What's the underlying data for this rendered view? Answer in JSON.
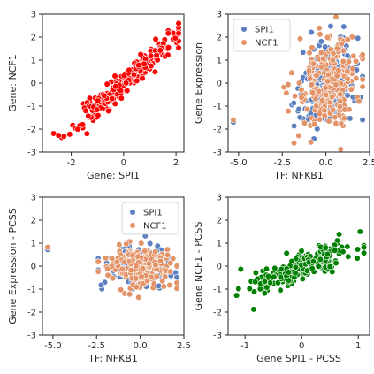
{
  "chart_data": [
    {
      "type": "scatter",
      "xlabel": "Gene: SPI1",
      "ylabel": "Gene: NCF1",
      "xlim": [
        -3.1,
        2.3
      ],
      "ylim": [
        -3,
        3
      ],
      "xticks": [
        "-2",
        "0",
        "2"
      ],
      "xtick_values": [
        -2,
        0,
        2
      ],
      "yticks": [
        "-3",
        "-2",
        "-1",
        "0",
        "1",
        "2",
        "3"
      ],
      "ytick_values": [
        -3,
        -2,
        -1,
        0,
        1,
        2,
        3
      ],
      "legend": null,
      "grid": false,
      "series": [
        {
          "color": "#ff0000",
          "n": 230,
          "generator": {
            "kind": "correlated",
            "x_sd": 1.0,
            "slope": 1.0,
            "noise_sd": 0.28,
            "seed": 11,
            "x_clip": [
              -3.0,
              2.1
            ]
          }
        }
      ]
    },
    {
      "type": "scatter",
      "xlabel": "TF: NFKB1",
      "ylabel": "Gene Expression",
      "xlim": [
        -5.6,
        2.5
      ],
      "ylim": [
        -3,
        3
      ],
      "xticks": [
        "-5.0",
        "-2.5",
        "0.0",
        "2.5"
      ],
      "xtick_values": [
        -5.0,
        -2.5,
        0.0,
        2.5
      ],
      "yticks": [
        "-3",
        "-2",
        "-1",
        "0",
        "1",
        "2",
        "3"
      ],
      "ytick_values": [
        -3,
        -2,
        -1,
        0,
        1,
        2,
        3
      ],
      "legend": "top-left",
      "grid": false,
      "series": [
        {
          "name": "SPI1",
          "color": "#5b7fbf",
          "n": 230,
          "generator": {
            "kind": "cloud",
            "x_mean": 0.1,
            "x_sd": 0.9,
            "slope": 0.35,
            "noise_sd": 0.95,
            "seed": 21,
            "x_clip": [
              -2.4,
              2.1
            ],
            "outliers": [
              [
                -5.3,
                -1.7
              ]
            ]
          }
        },
        {
          "name": "NCF1",
          "color": "#e39367",
          "n": 230,
          "generator": {
            "kind": "cloud",
            "x_mean": 0.1,
            "x_sd": 0.9,
            "slope": 0.35,
            "noise_sd": 0.95,
            "seed": 22,
            "x_clip": [
              -2.4,
              2.1
            ],
            "outliers": [
              [
                -5.3,
                -1.6
              ]
            ]
          }
        }
      ]
    },
    {
      "type": "scatter",
      "xlabel": "TF: NFKB1",
      "ylabel": "Gene Expression - PCSS",
      "xlim": [
        -5.6,
        2.5
      ],
      "ylim": [
        -3,
        3
      ],
      "xticks": [
        "-5.0",
        "-2.5",
        "0.0",
        "2.5"
      ],
      "xtick_values": [
        -5.0,
        -2.5,
        0.0,
        2.5
      ],
      "yticks": [
        "-3",
        "-2",
        "-1",
        "0",
        "1",
        "2",
        "3"
      ],
      "ytick_values": [
        -3,
        -2,
        -1,
        0,
        1,
        2,
        3
      ],
      "legend": "top-right",
      "grid": false,
      "series": [
        {
          "name": "SPI1",
          "color": "#5b7fbf",
          "n": 230,
          "generator": {
            "kind": "cloud",
            "x_mean": 0.0,
            "x_sd": 0.85,
            "slope": 0.0,
            "noise_sd": 0.42,
            "seed": 31,
            "x_clip": [
              -2.4,
              2.1
            ],
            "outliers": [
              [
                -5.3,
                0.72
              ]
            ]
          }
        },
        {
          "name": "NCF1",
          "color": "#e39367",
          "n": 230,
          "generator": {
            "kind": "cloud",
            "x_mean": 0.0,
            "x_sd": 0.85,
            "slope": 0.0,
            "noise_sd": 0.42,
            "seed": 32,
            "x_clip": [
              -2.4,
              2.1
            ],
            "outliers": [
              [
                -5.3,
                0.82
              ]
            ]
          }
        }
      ]
    },
    {
      "type": "scatter",
      "xlabel": "Gene SPI1 - PCSS",
      "ylabel": "Gene NCF1 - PCSS",
      "xlim": [
        -1.3,
        1.2
      ],
      "ylim": [
        -3,
        3
      ],
      "xticks": [
        "-1",
        "0",
        "1"
      ],
      "xtick_values": [
        -1,
        0,
        1
      ],
      "yticks": [
        "-3",
        "-2",
        "-1",
        "0",
        "1",
        "2",
        "3"
      ],
      "ytick_values": [
        -3,
        -2,
        -1,
        0,
        1,
        2,
        3
      ],
      "legend": null,
      "grid": false,
      "series": [
        {
          "color": "#008000",
          "n": 230,
          "generator": {
            "kind": "correlated",
            "x_sd": 0.42,
            "slope": 0.95,
            "noise_sd": 0.32,
            "seed": 41,
            "x_clip": [
              -1.15,
              1.1
            ]
          }
        }
      ]
    }
  ]
}
